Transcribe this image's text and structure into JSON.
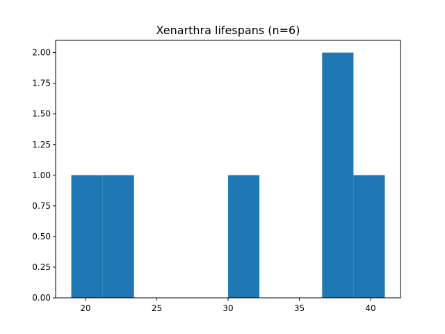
{
  "chart_data": {
    "type": "bar",
    "title": "Xenarthra lifespans (n=6)",
    "xlabel": "",
    "ylabel": "",
    "bar_color": "#1f77b4",
    "bins": [
      {
        "x0": 19.0,
        "x1": 21.2,
        "count": 1
      },
      {
        "x0": 21.2,
        "x1": 23.4,
        "count": 1
      },
      {
        "x0": 23.4,
        "x1": 25.6,
        "count": 0
      },
      {
        "x0": 25.6,
        "x1": 27.8,
        "count": 0
      },
      {
        "x0": 27.8,
        "x1": 30.0,
        "count": 0
      },
      {
        "x0": 30.0,
        "x1": 32.2,
        "count": 1
      },
      {
        "x0": 32.2,
        "x1": 34.4,
        "count": 0
      },
      {
        "x0": 34.4,
        "x1": 36.6,
        "count": 0
      },
      {
        "x0": 36.6,
        "x1": 38.8,
        "count": 2
      },
      {
        "x0": 38.8,
        "x1": 41.0,
        "count": 1
      }
    ],
    "xlim": [
      17.9,
      42.1
    ],
    "ylim": [
      0,
      2.1
    ],
    "xticks": [
      20,
      25,
      30,
      35,
      40
    ],
    "xtick_labels": [
      "20",
      "25",
      "30",
      "35",
      "40"
    ],
    "yticks": [
      0,
      0.25,
      0.5,
      0.75,
      1.0,
      1.25,
      1.5,
      1.75,
      2.0
    ],
    "ytick_labels": [
      "0.00",
      "0.25",
      "0.50",
      "0.75",
      "1.00",
      "1.25",
      "1.50",
      "1.75",
      "2.00"
    ],
    "grid": false,
    "legend": false
  }
}
